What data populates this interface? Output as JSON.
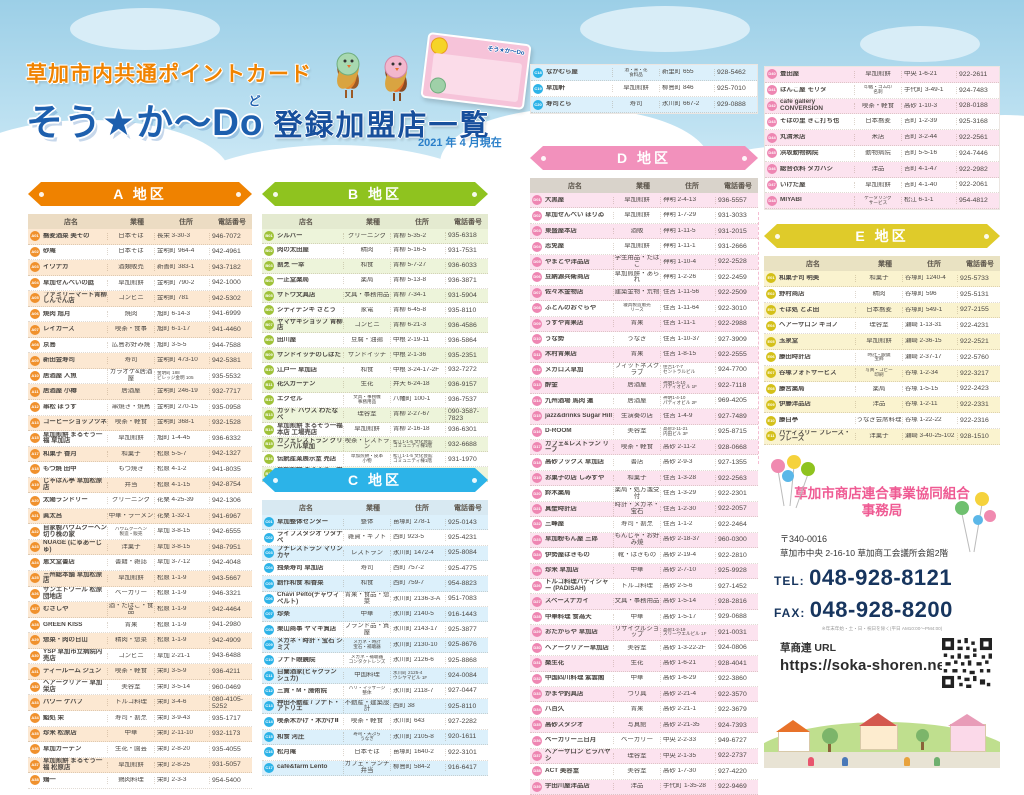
{
  "header": {
    "kicker": "草加市内共通ポイントカード",
    "logo": "そう★か〜Do",
    "logo_furigana": "ど",
    "list_title": "登録加盟店一覧",
    "date": "2021 年 4 月現在",
    "card_label": "そう★か〜Do"
  },
  "columns_labels": [
    "店名",
    "業種",
    "住所",
    "電話番号"
  ],
  "sections": [
    {
      "id": "A",
      "label": "A 地区",
      "colors": {
        "ribbon": "#ef8200",
        "head": "#ecdcc3",
        "alt": "#fce8d2",
        "badge": "#f0912d"
      },
      "columns": [
        "店名",
        "業種",
        "住所",
        "電話番号"
      ],
      "rows": [
        [
          "A01",
          "蕎麦酒菜 美その",
          "日本そば",
          "長栄 3-30-3",
          "946-7072"
        ],
        [
          "A02",
          "砂庵",
          "日本そば",
          "金明町 964-4",
          "942-4961"
        ],
        [
          "A03",
          "イワナガ",
          "酒類販売",
          "新善町 383-1",
          "943-7182"
        ],
        [
          "A04",
          "草加せんべいの庭",
          "草加煎餅",
          "金明町 790-2",
          "942-1000"
        ],
        [
          "A05",
          "ファミリーマート青柳しんでん店",
          "コンビニ",
          "金明町 781",
          "942-5302"
        ],
        [
          "A06",
          "焼肉 旭月",
          "焼肉",
          "旭町 6-14-3",
          "941-6999"
        ],
        [
          "A07",
          "レイカーズ",
          "喫茶・食事",
          "旭町 6-1-17",
          "941-4460"
        ],
        [
          "A08",
          "京島",
          "広島お好み焼",
          "旭町 3-5-5",
          "944-7588"
        ],
        [
          "A09",
          "新田金寿司",
          "寿司",
          "金明町 473-10",
          "942-5381"
        ],
        [
          "A10",
          "居酒屋 人魚",
          "カラオケ&居酒屋",
          "金明町 188\nビレッジ金明 105",
          "935-5532"
        ],
        [
          "A11",
          "居酒屋 小樽",
          "居酒屋",
          "金明町 246-19",
          "932-7717"
        ],
        [
          "A12",
          "串松 ぼうず",
          "串焼き・焼鳥",
          "金明町 270-15",
          "935-0958"
        ],
        [
          "A13",
          "コーヒーショップツネ",
          "喫茶・軽食",
          "金明町 368-1",
          "932-1528"
        ],
        [
          "A15",
          "草加煎餅 まるそう一福 草加店",
          "草加煎餅",
          "旭町 1-4-45",
          "936-6332"
        ],
        [
          "A17",
          "和菓子 香月",
          "和菓子",
          "松原 5-5-7",
          "942-1327"
        ],
        [
          "A18",
          "もつ焼 田中",
          "もつ焼き",
          "松原 4-1-2",
          "941-8035"
        ],
        [
          "A19",
          "じゃぱん亭 草加松原店",
          "弁当",
          "松原 4-1-15",
          "942-8754"
        ],
        [
          "A20",
          "太陽ランドリー",
          "クリーニング",
          "花栗 4-25-39",
          "942-1306"
        ],
        [
          "A21",
          "眞太呂",
          "中華・ラーメン",
          "花栗 1-32-1",
          "941-6967"
        ],
        [
          "A22",
          "自家製バウムクーヘン 切り株の家",
          "バウムクーヘン\n製造・販売",
          "草加 3-8-15",
          "942-6555"
        ],
        [
          "A23",
          "NUAGE (にゅあーじゅ)",
          "洋菓子",
          "草加 3-8-15",
          "948-7951"
        ],
        [
          "A24",
          "恵文堂書店",
          "書籍・雑誌",
          "草加 3-7-12",
          "942-4048"
        ],
        [
          "A25",
          "三州総本舗 草加松原店",
          "草加煎餅",
          "松原 1-1-9",
          "943-5667"
        ],
        [
          "A26",
          "サンエトワール 松原団地店",
          "ベーカリー",
          "松原 1-1-9",
          "946-3321"
        ],
        [
          "A27",
          "むさしや",
          "酒・たばこ・食品",
          "松原 1-1-9",
          "942-4464"
        ],
        [
          "A28",
          "GREEN KISS",
          "青果",
          "松原 1-1-9",
          "941-2980"
        ],
        [
          "A29",
          "惣菜・肉の日山",
          "精肉・惣菜",
          "松原 1-1-9",
          "942-4909"
        ],
        [
          "A30",
          "YSP 草加市立病院内売店",
          "コンビニ",
          "草加 2-21-1",
          "943-6488"
        ],
        [
          "A31",
          "ティールーム ジュン",
          "喫茶・軽食",
          "栄町 3-5-9",
          "936-4211"
        ],
        [
          "A32",
          "ヘアークリアー 草加栄店",
          "美容室",
          "栄町 3-5-14",
          "960-0469"
        ],
        [
          "A33",
          "パワー ケバブ",
          "トルコ料理",
          "栄町 3-4-6",
          "080-4105-5252"
        ],
        [
          "A34",
          "鮨処 栄",
          "寿司・割烹",
          "栄町 3-9-43",
          "935-1717"
        ],
        [
          "A35",
          "珍来 松原店",
          "中華",
          "栄町 2-11-10",
          "932-1173"
        ],
        [
          "A36",
          "草加ガーデン",
          "生花・園芸",
          "栄町 2-8-20",
          "935-4055"
        ],
        [
          "A37",
          "草加煎餅 まるそう一福 松原店",
          "草加煎餅",
          "栄町 2-8-25",
          "931-5057"
        ],
        [
          "A38",
          "鶏一",
          "鶏肉料理",
          "栄町 2-3-3",
          "954-5400"
        ]
      ]
    },
    {
      "id": "B",
      "label": "B 地区",
      "colors": {
        "ribbon": "#8fc31f",
        "head": "#e4ead0",
        "alt": "#edf4da",
        "badge": "#9fc238"
      },
      "columns": [
        "店名",
        "業種",
        "住所",
        "電話番号"
      ],
      "rows": [
        [
          "B01",
          "シルバー",
          "クリーニング",
          "青柳 5-35-2",
          "935-6318"
        ],
        [
          "B02",
          "肉の太田屋",
          "精肉",
          "青柳 5-16-5",
          "931-7531"
        ],
        [
          "B03",
          "割烹 一幸",
          "和食",
          "青柳 5-7-27",
          "936-6033"
        ],
        [
          "B04",
          "一正堂薬局",
          "薬局",
          "青柳 5-13-8",
          "936-3871"
        ],
        [
          "B05",
          "サトウ文具店",
          "文具・事務用品",
          "青柳 7-34-1",
          "931-5904"
        ],
        [
          "B06",
          "シティデンキ さとう",
          "家電",
          "青柳 6-45-8",
          "935-8110"
        ],
        [
          "B07",
          "ヤマザキショップ 青柳店",
          "コンビニ",
          "青柳 6-21-3",
          "936-4586"
        ],
        [
          "B08",
          "田川屋",
          "豆腐・油揚",
          "中根 2-19-11",
          "936-5864"
        ],
        [
          "B09",
          "サンドイッチのしばた",
          "サンドイッチ",
          "中根 2-1-36",
          "935-2351"
        ],
        [
          "B10",
          "江戸一 草加店",
          "和食",
          "中根 3-24-17-2F",
          "932-7272"
        ],
        [
          "B11",
          "花久ガーデン",
          "生花",
          "弁天 6-24-18",
          "936-9157"
        ],
        [
          "B12",
          "エクセル",
          "文具・事務機\n事務用品",
          "八幡町 100-1",
          "936-7537"
        ],
        [
          "B13",
          "カット ハウス わたなべ",
          "理容室",
          "青柳 2-27-67",
          "090-3587-7823"
        ],
        [
          "B14",
          "草加煎餅 まるそう一福 本店 工場売店",
          "草加煎餅",
          "青柳 2-16-18",
          "936-6301"
        ],
        [
          "B15",
          "カフェレストラン グリーンパル草加",
          "喫茶・レストラン",
          "松江1-1-5 文化会館\nコミュニティ棟1階",
          "932-6688"
        ],
        [
          "B16",
          "伝統産業展示室 売店",
          "草加煎餅・皮革\n小物",
          "松江1-1-5 文化会館\nコミュニティ棟1階",
          "931-1970"
        ],
        [
          "B17",
          "草加煎餅 まるそう一福 東草加店",
          "草加煎餅",
          "青柳 3-6-25",
          "936-1280"
        ]
      ]
    },
    {
      "id": "C",
      "label": "C 地区",
      "colors": {
        "ribbon": "#2cb3e8",
        "head": "#d8e9f2",
        "alt": "#dcf0fb",
        "badge": "#2cb3e8"
      },
      "columns": [
        "店名",
        "業種",
        "住所",
        "電話番号"
      ],
      "rows": [
        [
          "C01",
          "草加整体センター",
          "整体",
          "苗塚町 278-1",
          "925-0143"
        ],
        [
          "C02",
          "ライフスタジオ ワタナベ",
          "雑貨・ギフト",
          "西町 923-5",
          "925-4231"
        ],
        [
          "C03",
          "プチレストラン マリンカヤ",
          "レストラン",
          "氷川町 1472-4",
          "925-8084"
        ],
        [
          "C04",
          "独楽寿司 草加店",
          "寿司",
          "西町 757-2",
          "925-4775"
        ],
        [
          "C05",
          "創作和食 和香菜",
          "和食",
          "西町 759-7",
          "954-8823"
        ],
        [
          "C06",
          "Chavi Pelto(チャヴィペルト)",
          "青果・食品・惣菜",
          "氷川町 2136-3-A",
          "951-7083"
        ],
        [
          "C07",
          "珍楽",
          "中華",
          "氷川町 2140-5",
          "916-1443"
        ],
        [
          "C08",
          "栗山商事 ヤマキ質店",
          "ブランド品・質屋",
          "氷川町 2143-17",
          "925-3877"
        ],
        [
          "C09",
          "メガネ・時計・宝石 シミズ",
          "メガネ・時計\n宝石・補聴器",
          "氷川町 2130-10",
          "925-8676"
        ],
        [
          "C10",
          "フナト眼鏡院",
          "メガネ・補聴器\nコンタクトレンズ",
          "氷川町 2126-6",
          "925-8868"
        ],
        [
          "C11",
          "白蘭酒家(ビャクランシュカ)",
          "中国料理",
          "氷川町 2125-4\nウシヤマビル 1F",
          "924-0084"
        ],
        [
          "C12",
          "三貴・M・施術院",
          "ハリ・マッサージ\n整体",
          "氷川町 2118-7",
          "927-0447"
        ],
        [
          "C13",
          "押田不動産 / フナト・アトリエ",
          "不動産・建築設計",
          "西町 38",
          "925-8110"
        ],
        [
          "C14",
          "喫茶木かげ・木かげⅡ",
          "喫茶・軽食",
          "氷川町 643",
          "927-2282"
        ],
        [
          "C15",
          "和食 河庄",
          "寿司・天ぷら\nうなぎ",
          "氷川町 2105-8",
          "920-1611"
        ],
        [
          "C16",
          "松月庵",
          "日本そば",
          "苗塚町 1640-2",
          "922-3101"
        ],
        [
          "C17",
          "café&farm Lento",
          "カフェ・ランチ弁当",
          "柳島町 584-2",
          "916-6417"
        ]
      ]
    },
    {
      "id": "C2",
      "label": null,
      "colors": {
        "ribbon": "#2cb3e8",
        "head": "#d8e9f2",
        "alt": "#dcf0fb",
        "badge": "#2cb3e8"
      },
      "rows": [
        [
          "C18",
          "なかむら屋",
          "酒・米・花\n食料品",
          "新里町 655",
          "928-5462"
        ],
        [
          "C19",
          "草加軒",
          "草加煎餅",
          "柳島町 846",
          "925-7010"
        ],
        [
          "C20",
          "寿司とら",
          "寿司",
          "氷川町 667-2",
          "929-0888"
        ]
      ]
    },
    {
      "id": "D",
      "label": "D 地区",
      "colors": {
        "ribbon": "#f291bc",
        "head": "#d9d3cb",
        "alt": "#fce3ef",
        "badge": "#ee86b2"
      },
      "columns": [
        "店名",
        "業種",
        "住所",
        "電話番号"
      ],
      "rows": [
        [
          "D01",
          "大黒屋",
          "草加煎餅",
          "神明 2-4-13",
          "936-5557"
        ],
        [
          "D02",
          "草加せんべい ほりゐ",
          "草加煎餅",
          "神明 1-7-29",
          "931-3033"
        ],
        [
          "D03",
          "東盛屋本店",
          "酒販",
          "神明 1-11-5",
          "931-2015"
        ],
        [
          "D04",
          "志免屋",
          "草加煎餅",
          "神明 1-11-1",
          "931-2666"
        ],
        [
          "D05",
          "やまとや洋品店",
          "学生用品・たばこ",
          "神明 1-10-4",
          "922-2528"
        ],
        [
          "D06",
          "豆納源兵衛商店",
          "草加煎餅・あられ",
          "神明 1-2-26",
          "922-2459"
        ],
        [
          "D07",
          "佐々木金物店",
          "建築金物・荒物",
          "住吉 1-11-56",
          "922-2509"
        ],
        [
          "D08",
          "ふとんのおぐらや",
          "寝具製造販売\nリース",
          "住吉 1-11-64",
          "922-3010"
        ],
        [
          "D09",
          "うすや青果店",
          "青果",
          "住吉 1-11-1",
          "922-2988"
        ],
        [
          "D10",
          "うな勢",
          "うなぎ",
          "住吉 1-10-37",
          "927-3909"
        ],
        [
          "D11",
          "木村青果店",
          "青果",
          "住吉 1-8-15",
          "922-2555"
        ],
        [
          "D12",
          "メガロス草加",
          "フィットネスクラブ",
          "住吉1-7-7\nセントラルビル",
          "924-7700"
        ],
        [
          "D13",
          "酔金",
          "居酒屋",
          "神明1-4-10\nパティオビル 1F",
          "922-7118"
        ],
        [
          "D14",
          "九州酒場 馬肉 蓮",
          "居酒屋",
          "神明1-4-10\nパティオビル 2F",
          "969-4205"
        ],
        [
          "D15",
          "jazz&drinks Sugar Hill",
          "生演奏の店",
          "住吉 1-4-9",
          "927-7489"
        ],
        [
          "D16",
          "D-ROOM",
          "美容室",
          "高砂2-11-21\n内田ビル 3F",
          "925-8715"
        ],
        [
          "D17",
          "カフェ&レストラン リーフ",
          "喫茶・軽食",
          "高砂 2-11-2",
          "928-0668"
        ],
        [
          "D18",
          "高砂ブックス 草加店",
          "書店",
          "高砂 2-9-3",
          "927-1355"
        ],
        [
          "D19",
          "お菓子の店 しみずや",
          "和菓子",
          "住吉 1-3-28",
          "922-2563"
        ],
        [
          "D20",
          "鈴木薬局",
          "薬局・処方箋受付",
          "住吉 1-3-29",
          "922-2301"
        ],
        [
          "D21",
          "真壁時計店",
          "時計・メガネ・宝石",
          "住吉 1-2-30",
          "922-2057"
        ],
        [
          "D22",
          "三峰屋",
          "寿司・割烹",
          "住吉 1-1-2",
          "922-2464"
        ],
        [
          "D23",
          "草加粉もん屋 三郎",
          "もんじゃ・お好み焼",
          "高砂 2-18-37",
          "960-0300"
        ],
        [
          "D24",
          "伊勢屋はきもの",
          "靴・はきもの",
          "高砂 2-19-4",
          "922-2810"
        ],
        [
          "D25",
          "珍来 草加店",
          "中華",
          "高砂 2-7-10",
          "925-9928"
        ],
        [
          "D26",
          "トルコ料理パディシャー (PADISAH)",
          "トルコ料理",
          "高砂 2-5-6",
          "927-1452"
        ],
        [
          "D27",
          "スペースナガイ",
          "文具・事務用品",
          "高砂 1-5-14",
          "928-2816"
        ],
        [
          "D28",
          "中華料理 食為天",
          "中華",
          "高砂 1-5-17",
          "929-0688"
        ],
        [
          "D29",
          "おたからや 草加店",
          "リサイクルショップ",
          "高砂1-2-19\nスリーウエルビル 1F",
          "921-0031"
        ],
        [
          "D30",
          "ヘアークリアー草加店",
          "美容室",
          "高砂 1-3-22-2F",
          "924-0806"
        ],
        [
          "D31",
          "桑生花",
          "生花",
          "高砂 1-6-21",
          "928-4041"
        ],
        [
          "D32",
          "中国四川料理 紫雲閣",
          "中華",
          "高砂 1-6-29",
          "922-3860"
        ],
        [
          "D33",
          "かまや釣具店",
          "つり具",
          "高砂 2-21-4",
          "922-3570"
        ],
        [
          "D34",
          "八百久",
          "青果",
          "高砂 2-21-1",
          "922-3679"
        ],
        [
          "D35",
          "高砂スタジオ",
          "写真館",
          "高砂 2-21-35",
          "924-7393"
        ],
        [
          "D36",
          "ベーカリー三日月",
          "ベーカリー",
          "中央 2-2-33",
          "949-6727"
        ],
        [
          "D37",
          "ヘアーサロン ヒラバヤシ",
          "理容室",
          "中央 2-1-35",
          "922-2737"
        ],
        [
          "D38",
          "ACT 美容室",
          "美容室",
          "高砂 1-7-30",
          "927-4220"
        ],
        [
          "D39",
          "宇田川屋洋品店",
          "洋品",
          "手代町 1-35-28",
          "922-9469"
        ]
      ]
    },
    {
      "id": "D2",
      "label": null,
      "colors": {
        "ribbon": "#f291bc",
        "head": "#d9d3cb",
        "alt": "#fce3ef",
        "badge": "#ee86b2"
      },
      "rows": [
        [
          "D40",
          "豊田屋",
          "草加煎餅",
          "中央 1-6-21",
          "922-2611"
        ],
        [
          "D41",
          "はんこ屋 モリタ",
          "印鑑・ゴム印\n名刺",
          "手代町 3-49-1",
          "924-7483"
        ],
        [
          "D42",
          "cafe gallery CONVERSION",
          "喫茶・軽食",
          "高砂 1-10-3",
          "928-0188"
        ],
        [
          "D43",
          "そばの里 きこ打ち也",
          "日本蕎麦",
          "吉町 1-2-39",
          "925-3168"
        ],
        [
          "D44",
          "丸清米店",
          "米店",
          "吉町 3-2-44",
          "922-2561"
        ],
        [
          "D45",
          "浜坂動物病院",
          "動物病院",
          "吉町 5-5-16",
          "924-7446"
        ],
        [
          "D46",
          "総合衣料 タカハシ",
          "洋品",
          "吉町 4-1-47",
          "922-2982"
        ],
        [
          "D47",
          "いけだ屋",
          "草加煎餅",
          "吉町 4-1-40",
          "922-2061"
        ],
        [
          "D48",
          "MIYABI",
          "ケータリング\nサービス",
          "松江 6-1-1",
          "954-4812"
        ]
      ]
    },
    {
      "id": "E",
      "label": "E 地区",
      "colors": {
        "ribbon": "#dfcb2a",
        "head": "#e9e2c2",
        "alt": "#faf3cf",
        "badge": "#d4c018"
      },
      "columns": [
        "店名",
        "業種",
        "住所",
        "電話番号"
      ],
      "rows": [
        [
          "E01",
          "和菓子司 明美",
          "和菓子",
          "谷塚町 1240-4",
          "925-5733"
        ],
        [
          "E02",
          "野村商店",
          "精肉",
          "谷塚町 596",
          "925-5131"
        ],
        [
          "E03",
          "そば処 とよ田",
          "日本蕎麦",
          "谷塚町 549-1",
          "927-2155"
        ],
        [
          "E04",
          "ヘアーサロン キヨノ",
          "理容室",
          "瀬崎 1-13-31",
          "922-4231"
        ],
        [
          "E05",
          "玉泉堂",
          "草加煎餅",
          "瀬崎 2-36-15",
          "922-2521"
        ],
        [
          "E06",
          "藤田時計店",
          "時計・眼鏡\n宝飾",
          "瀬崎 2-37-17",
          "922-5760"
        ],
        [
          "E07",
          "谷塚フォトサービス",
          "写真・コピー\n印刷",
          "谷塚 1-2-34",
          "922-3217"
        ],
        [
          "E08",
          "藤宮薬局",
          "薬局",
          "谷塚 1-5-15",
          "922-2423"
        ],
        [
          "E09",
          "伊藤洋品店",
          "洋品",
          "谷塚 1-2-11",
          "922-2331"
        ],
        [
          "E10",
          "藤白亭",
          "うなぎ会席料理",
          "谷塚 1-22-22",
          "922-2316"
        ],
        [
          "E11",
          "パティスリー フレーズ・フレーズ",
          "洋菓子",
          "瀬崎 3-40-25-102",
          "928-1510"
        ]
      ]
    }
  ],
  "office": {
    "title": "草加市商店連合事業協同組合\n事務局",
    "postal": "〒340-0016",
    "address": "草加市中央 2-16-10 草加商工会議所会館2階",
    "tel_label": "TEL:",
    "tel": "048-928-8121",
    "fax_label": "FAX:",
    "fax": "048-928-8200",
    "note": "※年末年始・土・日・祝日を除く(平日 AM10:00〜PM4:00)",
    "url_label": "草商連 URL",
    "url": "https://soka-shoren.net"
  }
}
